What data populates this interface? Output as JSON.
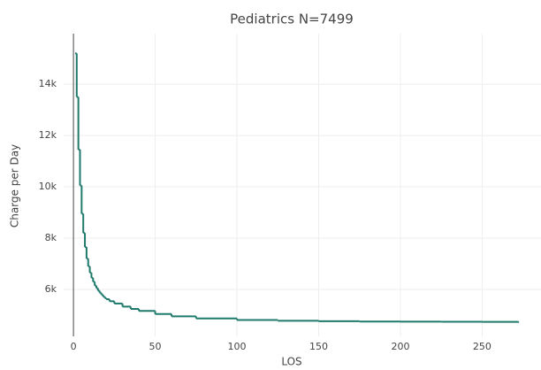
{
  "chart_data": {
    "type": "line",
    "title": "Pediatrics N=7499",
    "x_label": "LOS",
    "y_label": "Charge per Day",
    "line_shape": "hv",
    "grid": true,
    "color": "#1f7a6c",
    "x": [
      1,
      2,
      3,
      4,
      5,
      6,
      7,
      8,
      9,
      10,
      11,
      12,
      13,
      14,
      15,
      16,
      17,
      18,
      19,
      20,
      22,
      25,
      30,
      35,
      40,
      50,
      60,
      75,
      100,
      125,
      150,
      175,
      200,
      225,
      250,
      272
    ],
    "values": [
      15200,
      13500,
      11450,
      10050,
      8950,
      8200,
      7650,
      7200,
      6900,
      6650,
      6450,
      6300,
      6150,
      6050,
      5950,
      5870,
      5800,
      5730,
      5670,
      5620,
      5540,
      5450,
      5330,
      5240,
      5160,
      5040,
      4950,
      4870,
      4810,
      4780,
      4760,
      4750,
      4745,
      4740,
      4735,
      4730
    ],
    "xlim": [
      -6,
      286
    ],
    "ylim": [
      4170,
      15970
    ],
    "xticks": [
      0,
      50,
      100,
      150,
      200,
      250
    ],
    "yticks": [
      {
        "value": 6000,
        "label": "6k"
      },
      {
        "value": 8000,
        "label": "8k"
      },
      {
        "value": 10000,
        "label": "10k"
      },
      {
        "value": 12000,
        "label": "12k"
      },
      {
        "value": 14000,
        "label": "14k"
      }
    ]
  }
}
